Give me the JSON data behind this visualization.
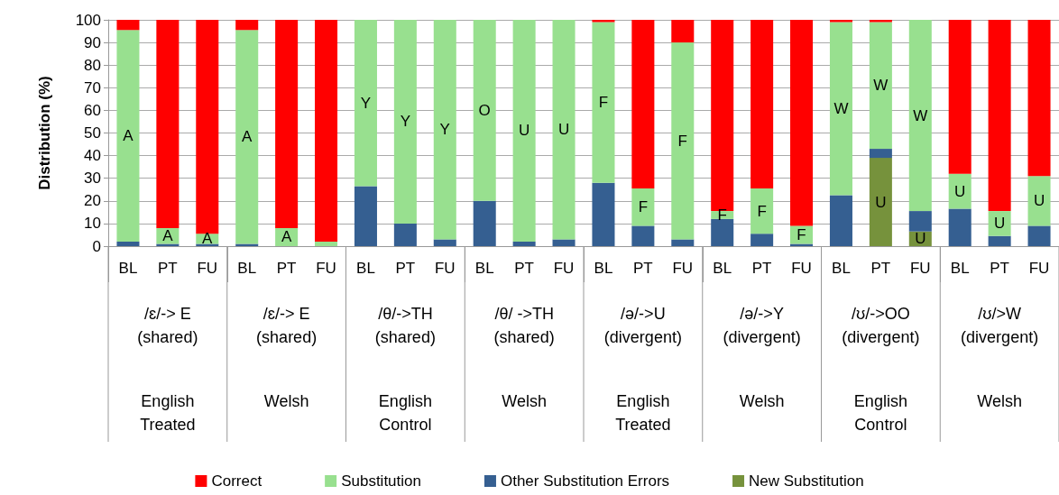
{
  "chart_data": {
    "type": "bar",
    "stacked": true,
    "ylabel": "Distribution (%)",
    "categories": [
      "BL",
      "PT",
      "FU",
      "BL",
      "PT",
      "FU",
      "BL",
      "PT",
      "FU",
      "BL",
      "PT",
      "FU",
      "BL",
      "PT",
      "FU",
      "BL",
      "PT",
      "FU",
      "BL",
      "PT",
      "FU",
      "BL",
      "PT",
      "FU"
    ],
    "series": [
      {
        "name": "New Substitution",
        "color": "#76923c",
        "values": [
          0,
          0,
          0,
          0,
          0,
          0,
          0,
          0,
          0,
          0,
          0,
          0,
          0,
          0,
          0,
          0,
          0,
          0,
          0,
          39,
          6.5,
          0,
          0,
          0
        ],
        "value_labels": [
          null,
          null,
          null,
          null,
          null,
          null,
          null,
          null,
          null,
          null,
          null,
          null,
          null,
          null,
          null,
          null,
          null,
          null,
          null,
          "U",
          "U",
          null,
          null,
          null
        ]
      },
      {
        "name": "Other Substitution Errors",
        "color": "#355f91",
        "values": [
          2,
          1,
          1,
          1,
          0,
          0,
          26.5,
          10,
          3,
          20,
          2,
          3,
          28,
          9,
          3,
          12,
          5.5,
          1,
          22.5,
          4,
          9,
          16.5,
          4.5,
          9
        ]
      },
      {
        "name": "Substitution",
        "color": "#98e08f",
        "values": [
          93.5,
          7,
          4.5,
          94.5,
          8,
          2,
          73.5,
          90,
          97,
          80,
          98,
          97,
          71,
          16.5,
          87,
          3.5,
          20,
          8,
          76.5,
          56,
          84.5,
          15.5,
          11,
          22
        ],
        "value_labels": [
          "A",
          "A",
          "A",
          "A",
          "A",
          null,
          "Y",
          "Y",
          "Y",
          "O",
          "U",
          "U",
          "F",
          "F",
          "F",
          "F",
          "F",
          "F",
          "W",
          "W",
          "W",
          "U",
          "U",
          "U"
        ]
      },
      {
        "name": "Correct",
        "color": "#ff0000",
        "values": [
          4.5,
          92,
          94.5,
          4.5,
          92,
          98,
          0,
          0,
          0,
          0,
          0,
          0,
          1,
          74.5,
          10,
          84.5,
          74.5,
          91,
          1,
          1,
          0,
          68,
          84.5,
          69
        ]
      }
    ],
    "ylim": [
      0,
      100
    ],
    "yticks": [
      0,
      10,
      20,
      30,
      40,
      50,
      60,
      70,
      80,
      90,
      100
    ],
    "grid": "y",
    "legend": "bottom",
    "annotations": [
      "/ɛ/-> E\n(shared)",
      "/ɛ/-> E\n(shared)",
      "/θ/->TH\n(shared)",
      "/θ/ ->TH\n(shared)",
      "/ə/->U\n(divergent)",
      "/ə/->Y\n(divergent)",
      "/ʊ/->OO\n(divergent)",
      "/ʊ/>W\n(divergent)",
      "English\nTreated",
      "Welsh",
      "English\nControl",
      "Welsh",
      "English\nTreated",
      "Welsh",
      "English\nControl",
      "Welsh"
    ]
  }
}
